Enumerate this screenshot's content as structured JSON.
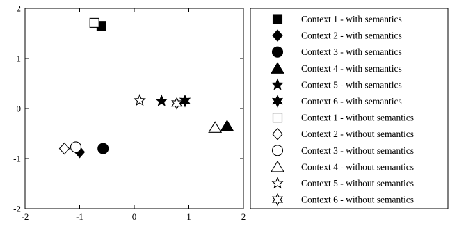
{
  "chart_data": {
    "type": "scatter",
    "title": "",
    "xlabel": "",
    "ylabel": "",
    "xlim": [
      -2,
      2
    ],
    "ylim": [
      -2,
      2
    ],
    "xticks": [
      "-2",
      "-1",
      "0",
      "1",
      "2"
    ],
    "yticks": [
      "2",
      "1",
      "0",
      "-1",
      "-2"
    ],
    "xtick_values": [
      -2,
      -1,
      0,
      1,
      2
    ],
    "ytick_values": [
      2,
      1,
      0,
      -1,
      -2
    ],
    "grid": false,
    "legend_position": "right",
    "series": [
      {
        "name": "Context 1 - with semantics",
        "marker": "square",
        "filled": true,
        "x": [
          -0.6
        ],
        "y": [
          1.65
        ]
      },
      {
        "name": "Context 2 - with semantics",
        "marker": "diamond",
        "filled": true,
        "x": [
          -1.0
        ],
        "y": [
          -0.87
        ]
      },
      {
        "name": "Context 3 - with semantics",
        "marker": "circle",
        "filled": true,
        "x": [
          -0.57
        ],
        "y": [
          -0.8
        ]
      },
      {
        "name": "Context 4 - with semantics",
        "marker": "triangle",
        "filled": true,
        "x": [
          1.7
        ],
        "y": [
          -0.35
        ]
      },
      {
        "name": "Context 5 - with semantics",
        "marker": "star5",
        "filled": true,
        "x": [
          0.5
        ],
        "y": [
          0.15
        ]
      },
      {
        "name": "Context 6 - with semantics",
        "marker": "star6",
        "filled": true,
        "x": [
          0.93
        ],
        "y": [
          0.15
        ]
      },
      {
        "name": "Context 1 - without semantics",
        "marker": "square",
        "filled": false,
        "x": [
          -0.73
        ],
        "y": [
          1.71
        ]
      },
      {
        "name": "Context 2 - without semantics",
        "marker": "diamond",
        "filled": false,
        "x": [
          -1.28
        ],
        "y": [
          -0.8
        ]
      },
      {
        "name": "Context 3 - without semantics",
        "marker": "circle",
        "filled": false,
        "x": [
          -1.07
        ],
        "y": [
          -0.77
        ]
      },
      {
        "name": "Context 4 - without semantics",
        "marker": "triangle",
        "filled": false,
        "x": [
          1.48
        ],
        "y": [
          -0.38
        ]
      },
      {
        "name": "Context 5 - without semantics",
        "marker": "star5",
        "filled": false,
        "x": [
          0.1
        ],
        "y": [
          0.16
        ]
      },
      {
        "name": "Context 6 - without semantics",
        "marker": "star6",
        "filled": false,
        "x": [
          0.78
        ],
        "y": [
          0.1
        ]
      }
    ]
  }
}
